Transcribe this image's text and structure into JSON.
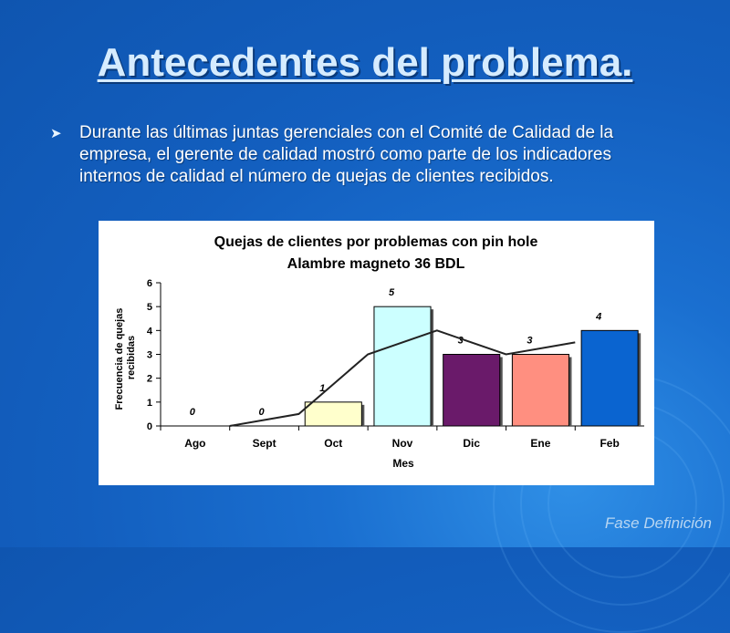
{
  "slide": {
    "title": "Antecedentes del problema.",
    "bullet_icon": "arrowhead-bullet-icon",
    "bullet_text": "Durante las últimas juntas gerenciales con el Comité de Calidad de la empresa, el gerente de calidad mostró como parte de los indicadores internos de calidad el número de quejas de clientes recibidos.",
    "footer": "Fase Definición"
  },
  "colors": {
    "background": "#135fbf",
    "line": "#222222",
    "bars": [
      "#ffffcc",
      "#ccffff",
      "#6a1a6a",
      "#ff8f80",
      "#0a64d0"
    ]
  },
  "chart_data": {
    "type": "bar",
    "title": "Quejas de clientes por problemas con pin hole",
    "subtitle": "Alambre magneto 36 BDL",
    "xlabel": "Mes",
    "ylabel": "Frecuencia de quejas recibidas",
    "categories": [
      "Ago",
      "Sept",
      "Oct",
      "Nov",
      "Dic",
      "Ene",
      "Feb"
    ],
    "values": [
      0,
      0,
      1,
      5,
      3,
      3,
      4
    ],
    "bar_colors": [
      "#ffffcc",
      "#ffffcc",
      "#ffffcc",
      "#ccffff",
      "#6a1a6a",
      "#ff8f80",
      "#0a64d0"
    ],
    "trendline": [
      0,
      0,
      0.5,
      3,
      4,
      3,
      3.5
    ],
    "ylim": [
      0,
      6
    ],
    "yticks": [
      0,
      1,
      2,
      3,
      4,
      5,
      6
    ],
    "grid": false,
    "legend": "none"
  }
}
